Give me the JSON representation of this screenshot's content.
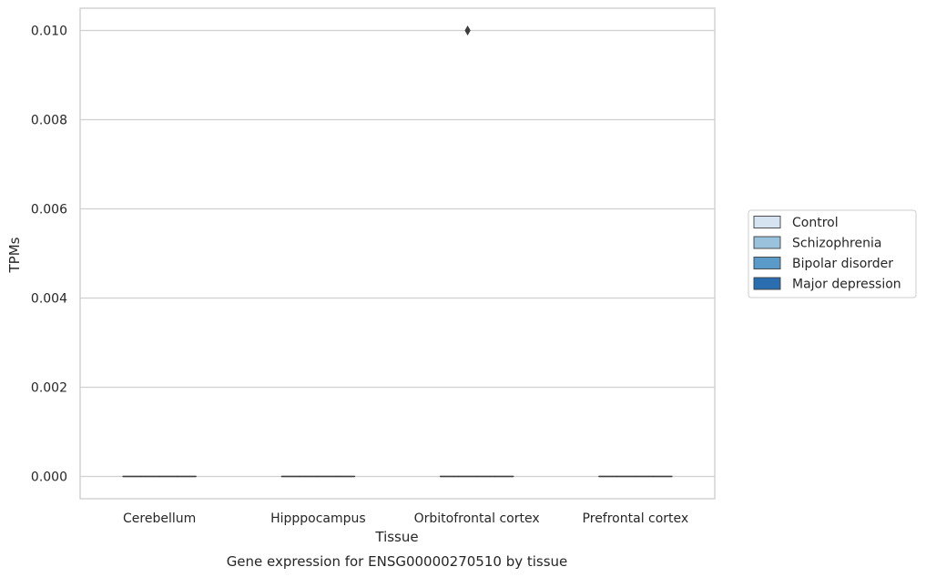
{
  "chart_data": {
    "type": "box",
    "title": "",
    "caption": "Gene expression for ENSG00000270510 by tissue",
    "xlabel": "Tissue",
    "ylabel": "TPMs",
    "categories": [
      "Cerebellum",
      "Hipppocampus",
      "Orbitofrontal cortex",
      "Prefrontal cortex"
    ],
    "ylim": [
      -0.0005,
      0.0105
    ],
    "yticks": [
      0.0,
      0.002,
      0.004,
      0.006,
      0.008,
      0.01
    ],
    "ytick_labels": [
      "0.000",
      "0.002",
      "0.004",
      "0.006",
      "0.008",
      "0.010"
    ],
    "grid": true,
    "legend_position": "right",
    "series": [
      {
        "name": "Control",
        "color": "#d6e4f2",
        "boxes": [
          {
            "category": "Cerebellum",
            "min": 0,
            "q1": 0,
            "median": 0,
            "q3": 0,
            "max": 0,
            "outliers": []
          },
          {
            "category": "Hipppocampus",
            "min": 0,
            "q1": 0,
            "median": 0,
            "q3": 0,
            "max": 0,
            "outliers": []
          },
          {
            "category": "Orbitofrontal cortex",
            "min": 0,
            "q1": 0,
            "median": 0,
            "q3": 0,
            "max": 0,
            "outliers": []
          },
          {
            "category": "Prefrontal cortex",
            "min": 0,
            "q1": 0,
            "median": 0,
            "q3": 0,
            "max": 0,
            "outliers": []
          }
        ]
      },
      {
        "name": "Schizophrenia",
        "color": "#9ac2dc",
        "boxes": [
          {
            "category": "Cerebellum",
            "min": 0,
            "q1": 0,
            "median": 0,
            "q3": 0,
            "max": 0,
            "outliers": []
          },
          {
            "category": "Hipppocampus",
            "min": 0,
            "q1": 0,
            "median": 0,
            "q3": 0,
            "max": 0,
            "outliers": []
          },
          {
            "category": "Orbitofrontal cortex",
            "min": 0,
            "q1": 0,
            "median": 0,
            "q3": 0,
            "max": 0,
            "outliers": [
              0.01
            ]
          },
          {
            "category": "Prefrontal cortex",
            "min": 0,
            "q1": 0,
            "median": 0,
            "q3": 0,
            "max": 0,
            "outliers": []
          }
        ]
      },
      {
        "name": "Bipolar disorder",
        "color": "#5a9bc9",
        "boxes": [
          {
            "category": "Cerebellum",
            "min": 0,
            "q1": 0,
            "median": 0,
            "q3": 0,
            "max": 0,
            "outliers": []
          },
          {
            "category": "Hipppocampus",
            "min": 0,
            "q1": 0,
            "median": 0,
            "q3": 0,
            "max": 0,
            "outliers": []
          },
          {
            "category": "Orbitofrontal cortex",
            "min": 0,
            "q1": 0,
            "median": 0,
            "q3": 0,
            "max": 0,
            "outliers": []
          },
          {
            "category": "Prefrontal cortex",
            "min": 0,
            "q1": 0,
            "median": 0,
            "q3": 0,
            "max": 0,
            "outliers": []
          }
        ]
      },
      {
        "name": "Major depression",
        "color": "#2a6eb0",
        "boxes": [
          {
            "category": "Cerebellum",
            "min": 0,
            "q1": 0,
            "median": 0,
            "q3": 0,
            "max": 0,
            "outliers": []
          },
          {
            "category": "Hipppocampus",
            "min": 0,
            "q1": 0,
            "median": 0,
            "q3": 0,
            "max": 0,
            "outliers": []
          },
          {
            "category": "Orbitofrontal cortex",
            "min": 0,
            "q1": 0,
            "median": 0,
            "q3": 0,
            "max": 0,
            "outliers": []
          },
          {
            "category": "Prefrontal cortex",
            "min": 0,
            "q1": 0,
            "median": 0,
            "q3": 0,
            "max": 0,
            "outliers": []
          }
        ]
      }
    ]
  }
}
